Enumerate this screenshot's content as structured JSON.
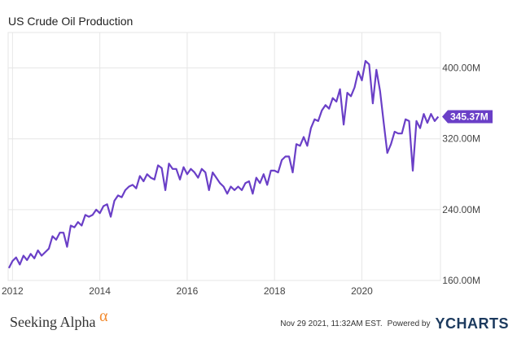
{
  "header": {
    "title": "US Crude Oil Production"
  },
  "footer": {
    "brand": "Seeking Alpha",
    "brand_symbol": "α",
    "timestamp": "Nov 29 2021, 11:32AM EST.",
    "powered_by": "Powered by",
    "powered_brand": "YCHARTS"
  },
  "colors": {
    "line": "#6a3fc7",
    "grid": "#e6e6e6",
    "axis_text": "#444444"
  },
  "chart_data": {
    "type": "line",
    "title": "US Crude Oil Production",
    "xlabel": "",
    "ylabel": "",
    "x_ticks": [
      "2012",
      "2014",
      "2016",
      "2018",
      "2020"
    ],
    "y_ticks": [
      "160.00M",
      "240.00M",
      "320.00M",
      "400.00M"
    ],
    "y_tick_values": [
      160,
      240,
      320,
      400
    ],
    "last_value_label": "345.37M",
    "ylim": [
      160,
      440
    ],
    "xlim": [
      2011.9,
      2021.8
    ],
    "grid": true,
    "series": [
      {
        "values_unit": "M",
        "x": [
          2011.917,
          2012.0,
          2012.083,
          2012.167,
          2012.25,
          2012.333,
          2012.417,
          2012.5,
          2012.583,
          2012.667,
          2012.75,
          2012.833,
          2012.917,
          2013.0,
          2013.083,
          2013.167,
          2013.25,
          2013.333,
          2013.417,
          2013.5,
          2013.583,
          2013.667,
          2013.75,
          2013.833,
          2013.917,
          2014.0,
          2014.083,
          2014.167,
          2014.25,
          2014.333,
          2014.417,
          2014.5,
          2014.583,
          2014.667,
          2014.75,
          2014.833,
          2014.917,
          2015.0,
          2015.083,
          2015.167,
          2015.25,
          2015.333,
          2015.417,
          2015.5,
          2015.583,
          2015.667,
          2015.75,
          2015.833,
          2015.917,
          2016.0,
          2016.083,
          2016.167,
          2016.25,
          2016.333,
          2016.417,
          2016.5,
          2016.583,
          2016.667,
          2016.75,
          2016.833,
          2016.917,
          2017.0,
          2017.083,
          2017.167,
          2017.25,
          2017.333,
          2017.417,
          2017.5,
          2017.583,
          2017.667,
          2017.75,
          2017.833,
          2017.917,
          2018.0,
          2018.083,
          2018.167,
          2018.25,
          2018.333,
          2018.417,
          2018.5,
          2018.583,
          2018.667,
          2018.75,
          2018.833,
          2018.917,
          2019.0,
          2019.083,
          2019.167,
          2019.25,
          2019.333,
          2019.417,
          2019.5,
          2019.583,
          2019.667,
          2019.75,
          2019.833,
          2019.917,
          2020.0,
          2020.083,
          2020.167,
          2020.25,
          2020.333,
          2020.417,
          2020.5,
          2020.583,
          2020.667,
          2020.75,
          2020.833,
          2020.917,
          2021.0,
          2021.083,
          2021.167,
          2021.25,
          2021.333,
          2021.417,
          2021.5,
          2021.583,
          2021.667,
          2021.75
        ],
        "values": [
          174,
          182,
          186,
          178,
          188,
          183,
          190,
          185,
          194,
          188,
          192,
          196,
          210,
          206,
          214,
          214,
          198,
          222,
          220,
          226,
          222,
          234,
          232,
          234,
          240,
          236,
          244,
          246,
          232,
          250,
          256,
          254,
          262,
          266,
          268,
          264,
          278,
          272,
          280,
          276,
          274,
          290,
          287,
          262,
          292,
          286,
          286,
          274,
          288,
          280,
          286,
          282,
          276,
          286,
          282,
          262,
          282,
          276,
          270,
          266,
          258,
          266,
          262,
          266,
          262,
          270,
          272,
          258,
          276,
          270,
          280,
          268,
          284,
          284,
          282,
          296,
          300,
          300,
          282,
          314,
          312,
          322,
          312,
          332,
          342,
          340,
          352,
          358,
          354,
          366,
          362,
          376,
          336,
          372,
          368,
          378,
          396,
          386,
          408,
          404,
          360,
          398,
          374,
          338,
          304,
          314,
          328,
          326,
          326,
          342,
          340,
          284,
          340,
          332,
          348,
          338,
          348,
          340,
          345
        ]
      }
    ]
  }
}
